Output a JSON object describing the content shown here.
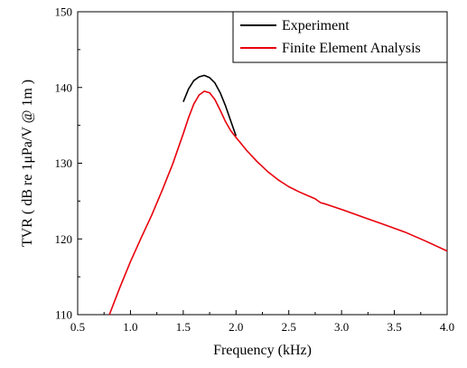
{
  "chart_data": {
    "type": "line",
    "xlabel": "Frequency (kHz)",
    "ylabel": "TVR ( dB re 1μPa/V @ 1m )",
    "xlim": [
      0.5,
      4.0
    ],
    "ylim": [
      110,
      150
    ],
    "xticks": [
      "0.5",
      "1.0",
      "1.5",
      "2.0",
      "2.5",
      "3.0",
      "3.5",
      "4.0"
    ],
    "yticks": [
      "110",
      "120",
      "130",
      "140",
      "150"
    ],
    "legend_position": "top-right",
    "grid": false,
    "series": [
      {
        "name": "Experiment",
        "color": "#000000",
        "x": [
          1.5,
          1.55,
          1.6,
          1.65,
          1.7,
          1.75,
          1.8,
          1.85,
          1.9,
          1.95,
          2.0
        ],
        "y": [
          138.1,
          139.8,
          140.9,
          141.4,
          141.6,
          141.3,
          140.6,
          139.3,
          137.6,
          135.6,
          133.6
        ]
      },
      {
        "name": "Finite Element Analysis",
        "color": "#e8000b",
        "x": [
          0.8,
          0.9,
          1.0,
          1.1,
          1.2,
          1.3,
          1.4,
          1.5,
          1.55,
          1.6,
          1.65,
          1.7,
          1.75,
          1.8,
          1.85,
          1.9,
          1.95,
          2.0,
          2.1,
          2.2,
          2.3,
          2.4,
          2.5,
          2.6,
          2.7,
          2.75,
          2.8,
          2.85,
          3.0,
          3.2,
          3.4,
          3.6,
          3.8,
          4.0
        ],
        "y": [
          110.0,
          113.6,
          117.0,
          120.1,
          123.1,
          126.4,
          129.9,
          133.9,
          136.0,
          137.8,
          139.0,
          139.5,
          139.3,
          138.4,
          137.0,
          135.5,
          134.3,
          133.4,
          131.7,
          130.2,
          128.9,
          127.8,
          126.9,
          126.2,
          125.6,
          125.3,
          124.8,
          124.6,
          123.9,
          122.9,
          121.9,
          120.9,
          119.7,
          118.4
        ]
      }
    ]
  }
}
